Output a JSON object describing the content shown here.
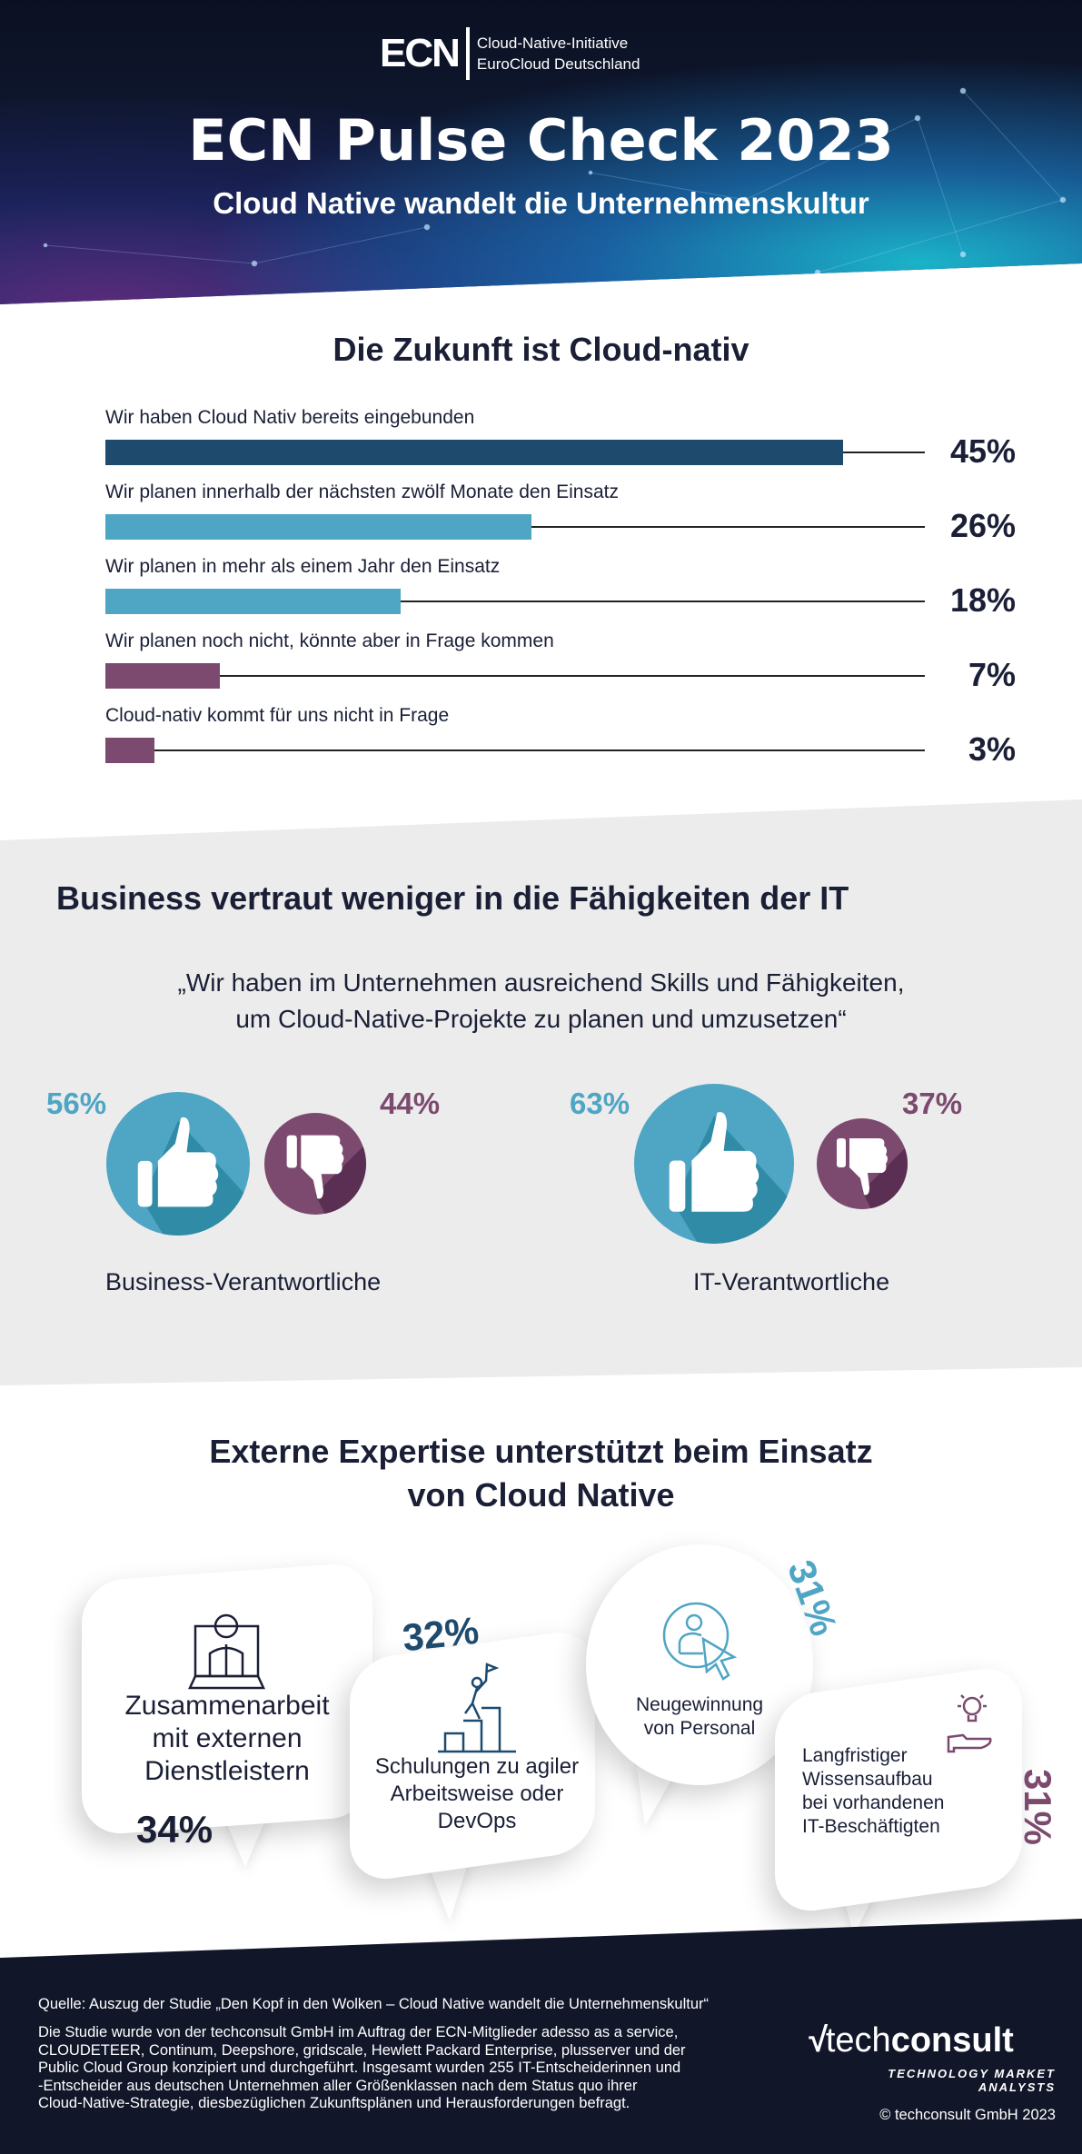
{
  "header": {
    "logo_mark": "ECN",
    "logo_line1": "Cloud-Native-Initiative",
    "logo_line2": "EuroCloud Deutschland",
    "title": "ECN Pulse Check 2023",
    "subtitle": "Cloud Native wandelt die Unternehmenskultur"
  },
  "section1": {
    "title": "Die Zukunft ist Cloud-nativ"
  },
  "chart_data": {
    "type": "bar",
    "orientation": "horizontal",
    "unit": "%",
    "categories": [
      "Wir haben Cloud Nativ bereits eingebunden",
      "Wir planen innerhalb der nächsten zwölf Monate den Einsatz",
      "Wir planen in mehr als einem Jahr den Einsatz",
      "Wir planen noch nicht, könnte aber in Frage kommen",
      "Cloud-nativ kommt für uns nicht in Frage"
    ],
    "values": [
      45,
      26,
      18,
      7,
      3
    ],
    "labels": [
      "45%",
      "26%",
      "18%",
      "7%",
      "3%"
    ],
    "colors": [
      "#1e4a6e",
      "#4fa5c4",
      "#4fa5c4",
      "#7b4a6e",
      "#7b4a6e"
    ],
    "xlim": [
      0,
      50
    ],
    "grid": false
  },
  "section2": {
    "title": "Business vertraut weniger in die Fähigkeiten der IT",
    "quote_line1": "„Wir haben im Unternehmen ausreichend Skills und Fähigkeiten,",
    "quote_line2": "um Cloud-Native-Projekte zu planen und umzusetzen“",
    "groups": [
      {
        "label": "Business-Verantwortliche",
        "yes": "56%",
        "no": "44%"
      },
      {
        "label": "IT-Verantwortliche",
        "yes": "63%",
        "no": "37%"
      }
    ],
    "colors": {
      "yes": "#4fa5c4",
      "no": "#7b4a6e"
    }
  },
  "section3": {
    "title_line1": "Externe Expertise unterstützt beim Einsatz",
    "title_line2": "von Cloud Native",
    "items": [
      {
        "icon": "video-call-person-icon",
        "lines": [
          "Zusammenarbeit",
          "mit externen",
          "Dienstleistern"
        ],
        "pct": "34%",
        "color": "#1a1f36"
      },
      {
        "icon": "stairs-flag-icon",
        "lines": [
          "Schulungen zu agiler",
          "Arbeitsweise oder",
          "DevOps"
        ],
        "pct": "32%",
        "color": "#1e4a6e"
      },
      {
        "icon": "user-cursor-icon",
        "lines": [
          "Neugewinnung",
          "von Personal"
        ],
        "pct": "31%",
        "color": "#4fa5c4"
      },
      {
        "icon": "lightbulb-hand-icon",
        "lines": [
          "Langfristiger",
          "Wissensaufbau",
          "bei vorhandenen",
          "IT-Beschäftigten"
        ],
        "pct": "31%",
        "color": "#7b4a6e"
      }
    ]
  },
  "footer": {
    "source": "Quelle: Auszug der Studie „Den Kopf in den Wolken  – Cloud Native wandelt die Unternehmenskultur“",
    "body": [
      "Die Studie wurde von der techconsult GmbH im Auftrag der ECN-Mitglieder adesso as a service,",
      "CLOUDETEER, Continum, Deepshore, gridscale, Hewlett Packard Enterprise, plusserver und der",
      "Public Cloud Group konzipiert und durchgeführt. Insgesamt wurden 255 IT-Entscheiderinnen und",
      "-Entscheider aus deutschen Unternehmen aller Größenklassen nach dem Status quo ihrer",
      "Cloud-Native-Strategie, diesbezüglichen Zukunftsplänen und Herausforderungen befragt."
    ],
    "logo_light": "tech",
    "logo_bold": "consult",
    "tagline": "TECHNOLOGY MARKET ANALYSTS",
    "copyright": "© techconsult GmbH 2023"
  }
}
